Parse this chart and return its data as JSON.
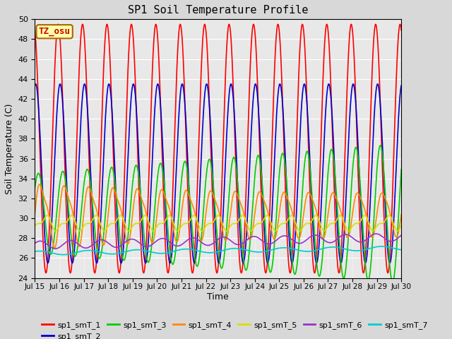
{
  "title": "SP1 Soil Temperature Profile",
  "xlabel": "Time",
  "ylabel": "Soil Temperature (C)",
  "ylim": [
    24,
    50
  ],
  "yticks": [
    24,
    26,
    28,
    30,
    32,
    34,
    36,
    38,
    40,
    42,
    44,
    46,
    48,
    50
  ],
  "background_color": "#d8d8d8",
  "plot_bg_color": "#e8e8e8",
  "series_colors": {
    "sp1_smT_1": "#ff0000",
    "sp1_smT_2": "#0000cc",
    "sp1_smT_3": "#00cc00",
    "sp1_smT_4": "#ff8800",
    "sp1_smT_5": "#dddd00",
    "sp1_smT_6": "#9933cc",
    "sp1_smT_7": "#00cccc"
  },
  "tz_label": "TZ_osu",
  "tz_bg": "#ffffaa",
  "tz_border": "#aa6600",
  "tz_color": "#cc0000",
  "n_points": 1440,
  "x_start": 15.0,
  "x_end": 30.0,
  "xtick_positions": [
    15,
    16,
    17,
    18,
    19,
    20,
    21,
    22,
    23,
    24,
    25,
    26,
    27,
    28,
    29,
    30
  ],
  "xtick_labels": [
    "Jul 15",
    "Jul 16",
    "Jul 17",
    "Jul 18",
    "Jul 19",
    "Jul 20",
    "Jul 21",
    "Jul 22",
    "Jul 23",
    "Jul 24",
    "Jul 25",
    "Jul 26",
    "Jul 27",
    "Jul 28",
    "Jul 29",
    "Jul 30"
  ]
}
